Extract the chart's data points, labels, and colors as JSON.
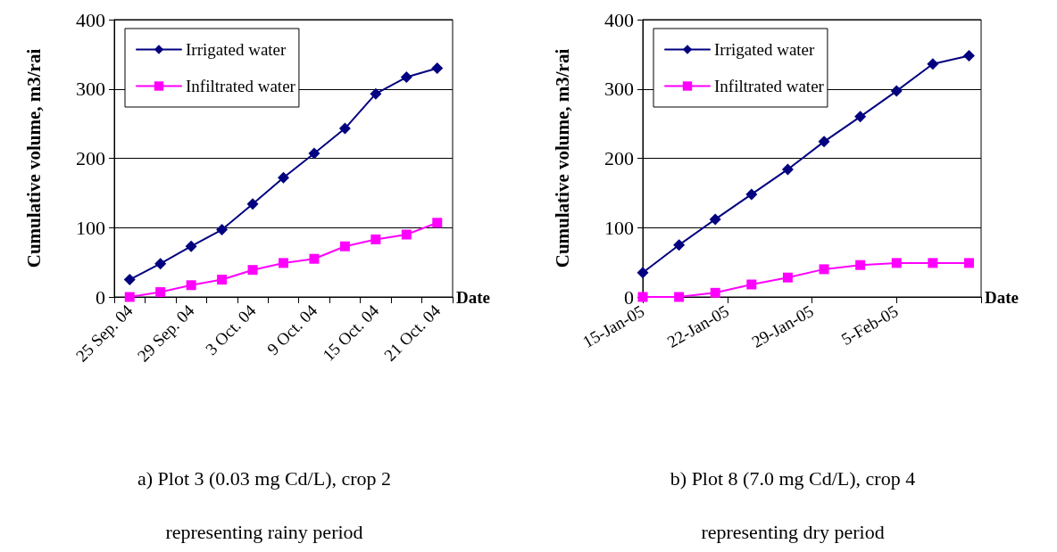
{
  "chart_data": [
    {
      "type": "line",
      "title": "a) Plot 3 (0.03 mg Cd/L), crop 2",
      "subtitle": "representing rainy period",
      "xlabel": "Date",
      "ylabel": "Cumulative volume, m3/rai",
      "categories": [
        "25 Sep. 04",
        null,
        "29 Sep. 04",
        null,
        "3 Oct. 04",
        null,
        "9 Oct. 04",
        null,
        "15 Oct. 04",
        null,
        "21 Oct. 04"
      ],
      "series": [
        {
          "name": "Irrigated water",
          "color": "#000080",
          "marker": "diamond",
          "values": [
            25,
            48,
            73,
            97,
            134,
            172,
            207,
            243,
            293,
            317,
            330
          ]
        },
        {
          "name": "Infiltrated water",
          "color": "#ff00ff",
          "marker": "square",
          "values": [
            0,
            7,
            17,
            25,
            39,
            49,
            55,
            73,
            83,
            90,
            107
          ]
        }
      ],
      "ylim": [
        0,
        400
      ],
      "yticks": [
        0,
        100,
        200,
        300,
        400
      ],
      "grid": "y",
      "legend": "top left",
      "line_style": "solid"
    },
    {
      "type": "line",
      "title": "b) Plot 8 (7.0 mg Cd/L), crop 4",
      "subtitle": "representing dry period",
      "xlabel": "Date",
      "ylabel": "Cumulative volume, m3/rai",
      "x": [
        "--01-15",
        "--01-18",
        "--01-21",
        "--01-24",
        "--01-27",
        "--01-30",
        "--02-02",
        "--02-05",
        "--02-08",
        "--02-11"
      ],
      "series": [
        {
          "name": "Irrigated water",
          "color": "#000080",
          "marker": "diamond",
          "values": [
            35,
            75,
            112,
            148,
            184,
            224,
            260,
            297,
            336,
            348
          ]
        },
        {
          "name": "Infiltrated water",
          "color": "#ff00ff",
          "marker": "square",
          "values": [
            0,
            0,
            6,
            18,
            28,
            40,
            46,
            49,
            49,
            49
          ]
        }
      ],
      "xlim": [
        "--01-15",
        "--02-12"
      ],
      "xticks": [
        {
          "value": "--01-15",
          "label": "15-Jan-05"
        },
        {
          "value": "--01-22",
          "label": "22-Jan-05"
        },
        {
          "value": "--01-29",
          "label": "29-Jan-05"
        },
        {
          "value": "--02-05",
          "label": "5-Feb-05"
        },
        {
          "value": "--02-12",
          "label": null
        }
      ],
      "ylim": [
        0,
        400
      ],
      "yticks": [
        0,
        100,
        200,
        300,
        400
      ],
      "grid": "y",
      "legend": "top left",
      "line_style": "solid"
    }
  ]
}
